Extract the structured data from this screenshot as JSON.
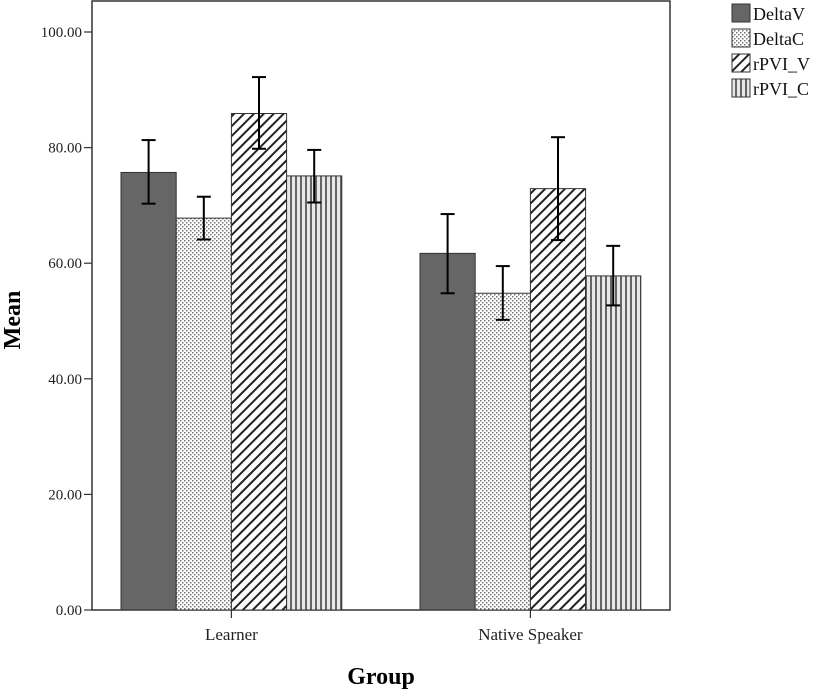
{
  "chart_data": {
    "type": "bar",
    "title": "",
    "xlabel": "Group",
    "ylabel": "Mean",
    "ylim": [
      0,
      100
    ],
    "yticks": [
      "0.00",
      "20.00",
      "40.00",
      "60.00",
      "80.00",
      "100.00"
    ],
    "ytick_values": [
      0,
      20,
      40,
      60,
      80,
      100
    ],
    "categories": [
      "Learner",
      "Native Speaker"
    ],
    "legend_position": "top-right outside",
    "series": [
      {
        "name": "DeltaV",
        "pattern": "solid",
        "color": "#666666",
        "values": [
          75.7,
          61.7
        ],
        "err_low": [
          70.3,
          54.8
        ],
        "err_high": [
          81.3,
          68.5
        ]
      },
      {
        "name": "DeltaC",
        "pattern": "dots",
        "color": "#bbbbbb",
        "values": [
          67.8,
          54.8
        ],
        "err_low": [
          64.1,
          50.2
        ],
        "err_high": [
          71.5,
          59.5
        ]
      },
      {
        "name": "rPVI_V",
        "pattern": "diagonal",
        "color": "#333333",
        "values": [
          85.9,
          72.9
        ],
        "err_low": [
          79.8,
          64.0
        ],
        "err_high": [
          92.2,
          81.8
        ]
      },
      {
        "name": "rPVI_C",
        "pattern": "vertical",
        "color": "#555555",
        "values": [
          75.1,
          57.8
        ],
        "err_low": [
          70.5,
          52.7
        ],
        "err_high": [
          79.6,
          63.0
        ]
      }
    ]
  }
}
